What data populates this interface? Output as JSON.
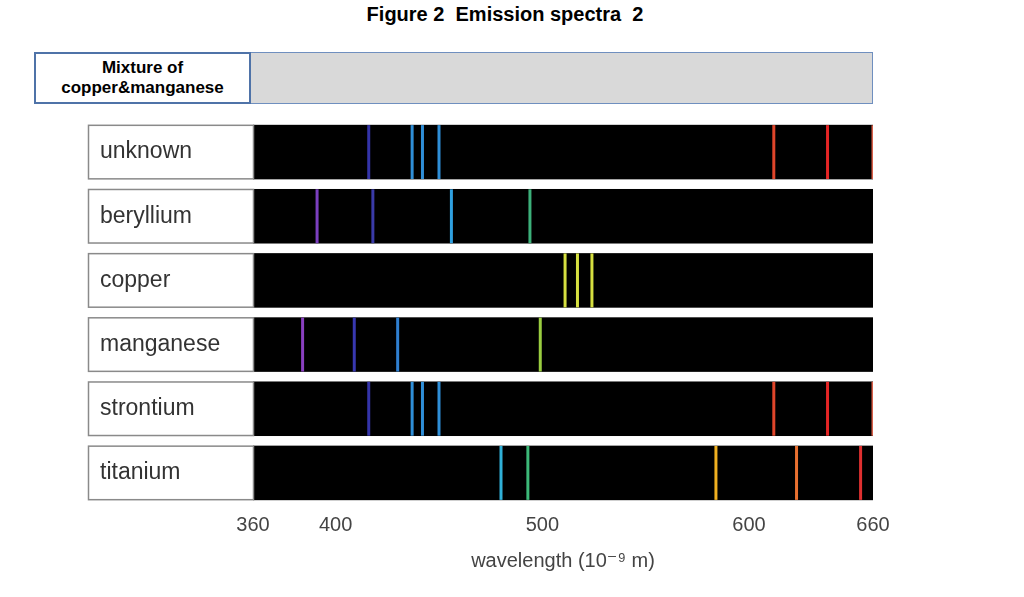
{
  "chart_data": {
    "type": "spectrum",
    "title": "Figure 2  Emission spectra  2",
    "annotation": "Mixture of copper&manganese",
    "xlabel": "wavelength (10⁻⁹ m)",
    "xlim": [
      360,
      660
    ],
    "xticks": [
      360,
      400,
      500,
      600,
      660
    ],
    "grid": false,
    "rows": [
      {
        "label": "unknown",
        "wavelengths": [
          416,
          437,
          442,
          450,
          612,
          638,
          660
        ],
        "colors": [
          "#3434a8",
          "#2f8fd8",
          "#2f8fd8",
          "#2f8fd8",
          "#e0452a",
          "#e52525",
          "#d9604a"
        ]
      },
      {
        "label": "beryllium",
        "wavelengths": [
          391,
          418,
          456,
          494
        ],
        "colors": [
          "#7b3fbf",
          "#3a3aa8",
          "#2fa0e0",
          "#3cb07a"
        ]
      },
      {
        "label": "copper",
        "wavelengths": [
          511,
          517,
          524
        ],
        "colors": [
          "#d6e040",
          "#d6e040",
          "#d6e040"
        ]
      },
      {
        "label": "manganese",
        "wavelengths": [
          384,
          409,
          430,
          499
        ],
        "colors": [
          "#8a40c0",
          "#3838b0",
          "#2f7fd0",
          "#9acd40"
        ]
      },
      {
        "label": "strontium",
        "wavelengths": [
          416,
          437,
          442,
          450,
          612,
          638,
          660
        ],
        "colors": [
          "#3434a8",
          "#2f8fd8",
          "#2f8fd8",
          "#2f8fd8",
          "#e0452a",
          "#e52525",
          "#d9604a"
        ]
      },
      {
        "label": "titanium",
        "wavelengths": [
          480,
          493,
          584,
          623,
          654
        ],
        "colors": [
          "#30b0d8",
          "#3cb878",
          "#f0b020",
          "#e87030",
          "#e03030"
        ]
      }
    ]
  }
}
